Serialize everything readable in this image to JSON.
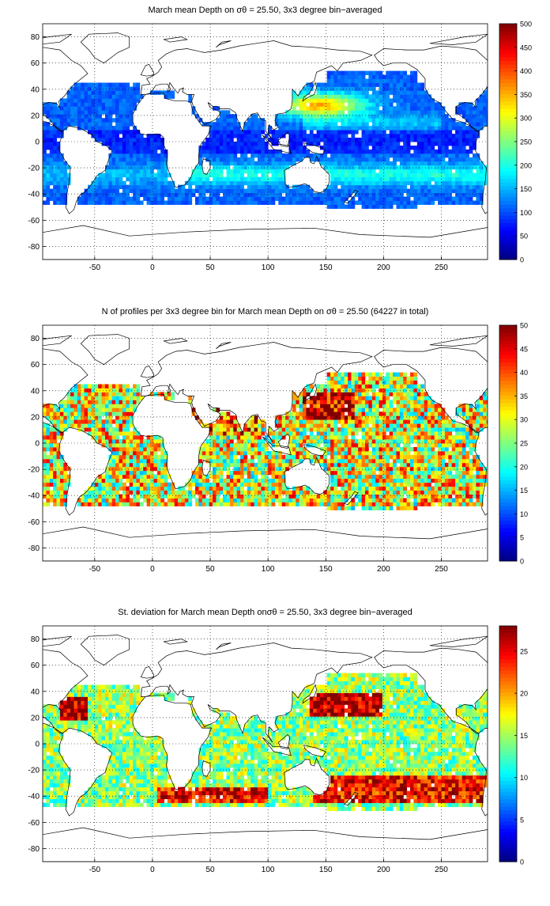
{
  "panels": [
    {
      "title": "March mean Depth on σθ = 25.50, 3x3 degree bin−averaged",
      "colorbar": {
        "min": 0,
        "max": 500,
        "ticks": [
          0,
          50,
          100,
          150,
          200,
          250,
          300,
          350,
          400,
          450,
          500
        ]
      },
      "field": "depth"
    },
    {
      "title": "N of profiles per 3x3 degree bin for March mean Depth on σθ = 25.50 (64227 in total)",
      "colorbar": {
        "min": 0,
        "max": 50,
        "ticks": [
          0,
          5,
          10,
          15,
          20,
          25,
          30,
          35,
          40,
          45,
          50
        ]
      },
      "field": "count"
    },
    {
      "title": "St. deviation for March mean Depth onσθ = 25.50, 3x3 degree bin−averaged",
      "colorbar": {
        "min": 0,
        "max": 28,
        "ticks": [
          0,
          5,
          10,
          15,
          20,
          25
        ]
      },
      "field": "std"
    }
  ],
  "map": {
    "xlim": [
      -95,
      290
    ],
    "ylim": [
      -90,
      90
    ],
    "xticks": [
      -50,
      0,
      50,
      100,
      150,
      200,
      250
    ],
    "yticks": [
      -80,
      -60,
      -40,
      -20,
      0,
      20,
      40,
      60,
      80
    ],
    "grid": "dotted",
    "colormap": "jet",
    "bin_size_deg": 3
  }
}
